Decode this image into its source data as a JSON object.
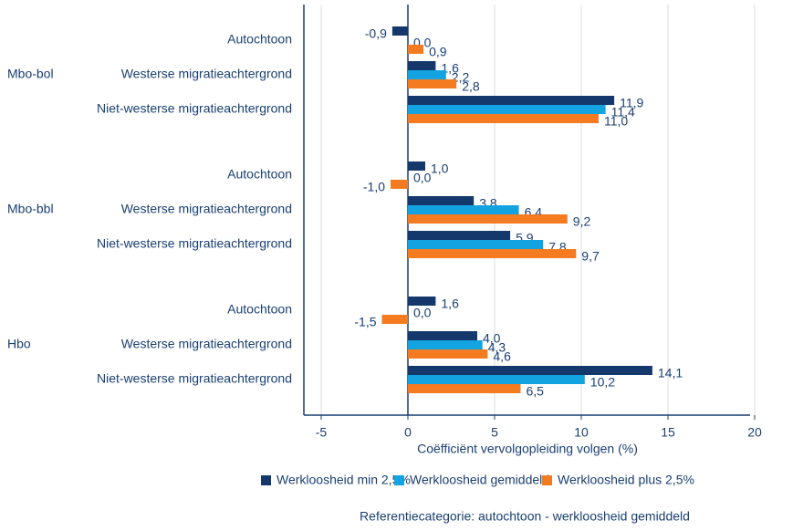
{
  "chart_data": {
    "type": "grouped-bar-horizontal",
    "groups": [
      "Mbo-bol",
      "Mbo-bbl",
      "Hbo"
    ],
    "categories": [
      "Autochtoon",
      "Westerse migratieachtergrond",
      "Niet-westerse migratieachtergrond",
      "Autochtoon",
      "Westerse migratieachtergrond",
      "Niet-westerse migratieachtergrond",
      "Autochtoon",
      "Westerse migratieachtergrond",
      "Niet-westerse migratieachtergrond"
    ],
    "series": [
      {
        "name": "Werkloosheid min 2,5%",
        "color": "#14386b",
        "values": [
          -0.9,
          1.6,
          11.9,
          1.0,
          3.8,
          5.9,
          1.6,
          4.0,
          14.1
        ],
        "value_labels": [
          "-0,9",
          "1,6",
          "11,9",
          "1,0",
          "3,8",
          "5,9",
          "1,6",
          "4,0",
          "14,1"
        ]
      },
      {
        "name": "Werkloosheid gemiddeld",
        "color": "#12a3e0",
        "values": [
          0.0,
          2.2,
          11.4,
          0.0,
          6.4,
          7.8,
          0.0,
          4.3,
          10.2
        ],
        "value_labels": [
          "0,0",
          "2,2",
          "11,4",
          "0,0",
          "6,4",
          "7,8",
          "0,0",
          "4,3",
          "10,2"
        ]
      },
      {
        "name": "Werkloosheid plus 2,5%",
        "color": "#f47b20",
        "values": [
          0.9,
          2.8,
          11.0,
          -1.0,
          9.2,
          9.7,
          -1.5,
          4.6,
          6.5
        ],
        "value_labels": [
          "0,9",
          "2,8",
          "11,0",
          "-1,0",
          "9,2",
          "9,7",
          "-1,5",
          "4,6",
          "6,5"
        ]
      }
    ],
    "xlabel": "Coëfficiënt vervolgopleiding volgen (%)",
    "xlim": [
      -6,
      21
    ],
    "xticks": [
      -5,
      0,
      5,
      10,
      15,
      20
    ],
    "grid": true,
    "legend": "bottom",
    "footnote": "Referentiecategorie: autochtoon - werkloosheid gemiddeld"
  }
}
